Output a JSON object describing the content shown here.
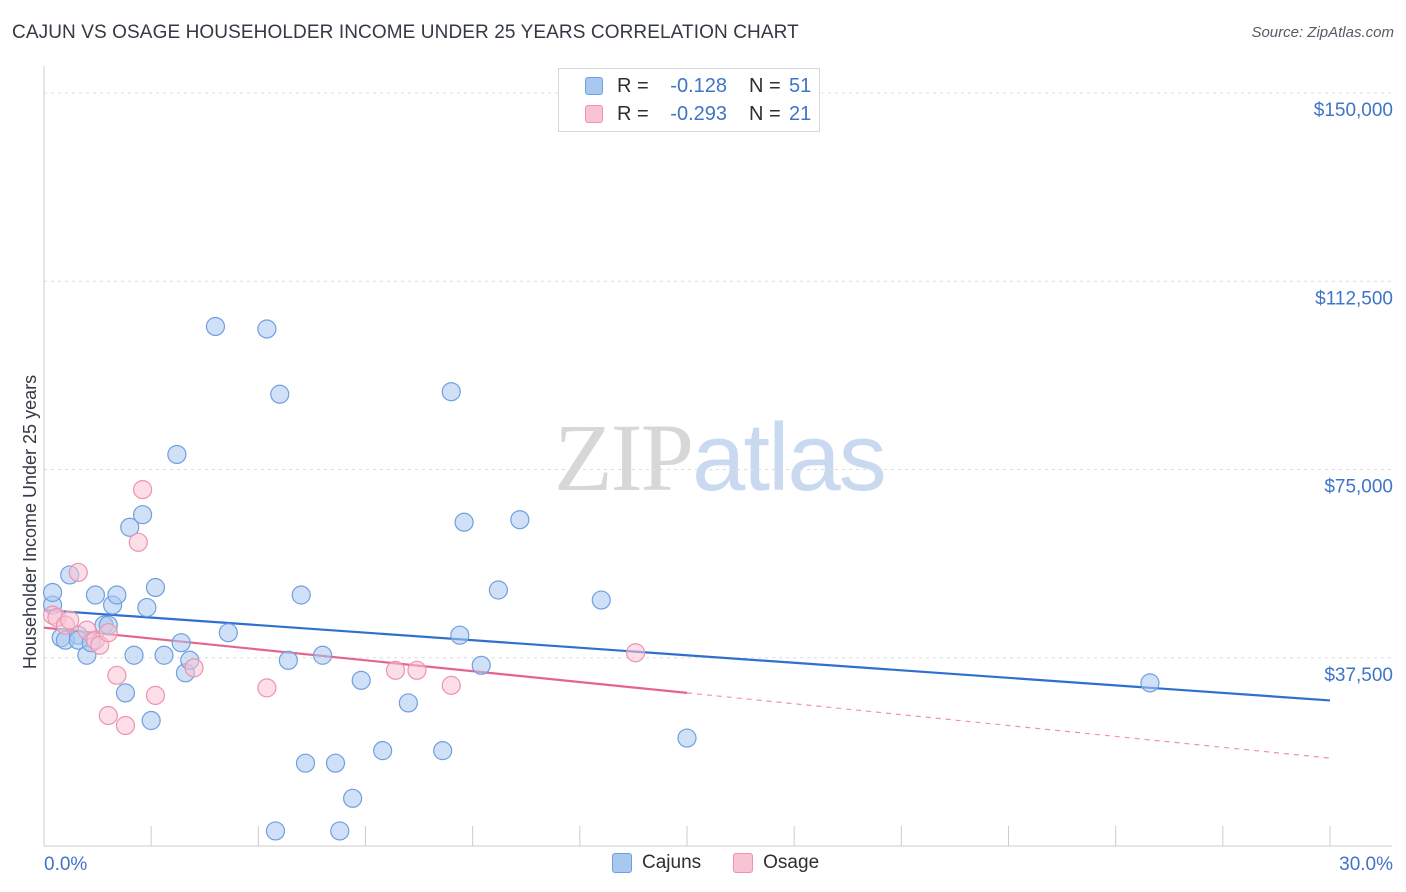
{
  "title": "CAJUN VS OSAGE HOUSEHOLDER INCOME UNDER 25 YEARS CORRELATION CHART",
  "source": "Source: ZipAtlas.com",
  "watermark": {
    "zip": "ZIP",
    "atlas": "atlas"
  },
  "legend": {
    "rows": [
      {
        "r_label": "R =",
        "r_value": "-0.128",
        "n_label": "N =",
        "n_value": "51",
        "color": "#a9c8f0",
        "border": "#6f9fe0"
      },
      {
        "r_label": "R =",
        "r_value": "-0.293",
        "n_label": "N =",
        "n_value": "21",
        "color": "#f8c3d3",
        "border": "#ee93ae"
      }
    ]
  },
  "bottom_legend": [
    {
      "label": "Cajuns",
      "color": "#a9c8f0",
      "border": "#6f9fe0"
    },
    {
      "label": "Osage",
      "color": "#f8c3d3",
      "border": "#ee93ae"
    }
  ],
  "chart_data": {
    "type": "scatter",
    "title": "CAJUN VS OSAGE HOUSEHOLDER INCOME UNDER 25 YEARS CORRELATION CHART",
    "xlabel": "",
    "ylabel": "Householder Income Under 25 years",
    "xlim": [
      0,
      30
    ],
    "ylim": [
      0,
      153000
    ],
    "x_tick_labels": [
      "0.0%",
      "30.0%"
    ],
    "y_ticks": [
      37500,
      75000,
      112500,
      150000
    ],
    "y_tick_labels": [
      "$37,500",
      "$75,000",
      "$112,500",
      "$150,000"
    ],
    "series": [
      {
        "name": "Cajuns",
        "color": "#a9c8f0",
        "stroke": "#6f9fe0",
        "line_color": "#2f6fd0",
        "trend": {
          "x": [
            0,
            30
          ],
          "y": [
            47000,
            29000
          ],
          "dashed_from": null
        },
        "points": [
          [
            0.2,
            48000
          ],
          [
            0.2,
            50500
          ],
          [
            0.4,
            41500
          ],
          [
            0.5,
            41000
          ],
          [
            0.6,
            54000
          ],
          [
            0.8,
            42000
          ],
          [
            0.8,
            41000
          ],
          [
            1.0,
            38000
          ],
          [
            1.1,
            40500
          ],
          [
            1.2,
            50000
          ],
          [
            1.4,
            44000
          ],
          [
            1.5,
            44000
          ],
          [
            1.6,
            48000
          ],
          [
            1.7,
            50000
          ],
          [
            1.9,
            30500
          ],
          [
            2.0,
            63500
          ],
          [
            2.1,
            38000
          ],
          [
            2.3,
            66000
          ],
          [
            2.4,
            47500
          ],
          [
            2.5,
            25000
          ],
          [
            2.6,
            51500
          ],
          [
            2.8,
            38000
          ],
          [
            3.1,
            78000
          ],
          [
            3.2,
            40500
          ],
          [
            3.3,
            34500
          ],
          [
            3.4,
            37000
          ],
          [
            4.0,
            103500
          ],
          [
            4.3,
            42500
          ],
          [
            5.2,
            103000
          ],
          [
            5.4,
            3000
          ],
          [
            5.5,
            90000
          ],
          [
            5.7,
            37000
          ],
          [
            6.0,
            50000
          ],
          [
            6.1,
            16500
          ],
          [
            6.5,
            38000
          ],
          [
            6.8,
            16500
          ],
          [
            6.9,
            3000
          ],
          [
            7.2,
            9500
          ],
          [
            7.4,
            33000
          ],
          [
            7.9,
            19000
          ],
          [
            8.5,
            28500
          ],
          [
            9.3,
            19000
          ],
          [
            9.5,
            90500
          ],
          [
            9.7,
            42000
          ],
          [
            9.8,
            64500
          ],
          [
            10.2,
            36000
          ],
          [
            10.6,
            51000
          ],
          [
            11.1,
            65000
          ],
          [
            13.0,
            49000
          ],
          [
            15.0,
            21500
          ],
          [
            25.8,
            32500
          ]
        ]
      },
      {
        "name": "Osage",
        "color": "#f8c3d3",
        "stroke": "#ee93ae",
        "line_color": "#e5648f",
        "trend": {
          "x": [
            0,
            15
          ],
          "y": [
            43500,
            30500
          ],
          "dashed_to": [
            30,
            17500
          ]
        },
        "points": [
          [
            0.2,
            46000
          ],
          [
            0.3,
            45500
          ],
          [
            0.5,
            44000
          ],
          [
            0.6,
            45000
          ],
          [
            0.8,
            54500
          ],
          [
            1.0,
            43000
          ],
          [
            1.2,
            41000
          ],
          [
            1.3,
            40000
          ],
          [
            1.5,
            42500
          ],
          [
            1.5,
            26000
          ],
          [
            1.7,
            34000
          ],
          [
            1.9,
            24000
          ],
          [
            2.2,
            60500
          ],
          [
            2.3,
            71000
          ],
          [
            2.6,
            30000
          ],
          [
            3.5,
            35500
          ],
          [
            5.2,
            31500
          ],
          [
            8.2,
            35000
          ],
          [
            8.7,
            35000
          ],
          [
            9.5,
            32000
          ],
          [
            13.8,
            38500
          ]
        ]
      }
    ]
  }
}
